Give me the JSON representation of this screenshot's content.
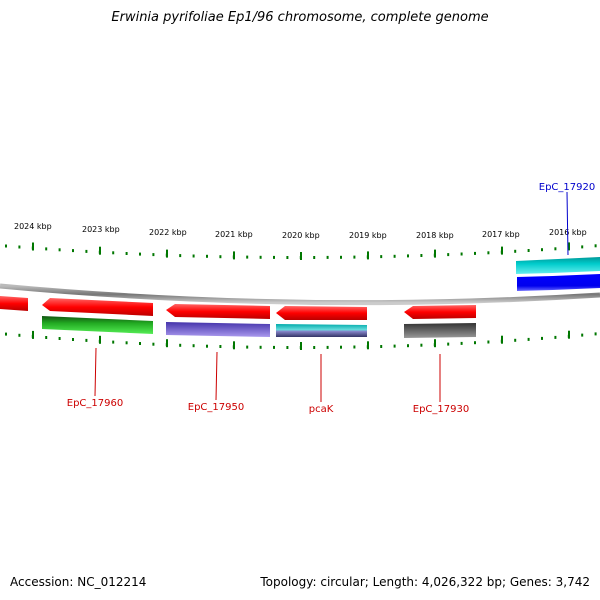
{
  "title": "Erwinia pyrifoliae Ep1/96 chromosome, complete genome",
  "footer": {
    "accession": "Accession: NC_012214",
    "summary": "Topology: circular; Length: 4,026,322 bp; Genes: 3,742"
  },
  "scale_labels": [
    "2024 kbp",
    "2023 kbp",
    "2022 kbp",
    "2021 kbp",
    "2020 kbp",
    "2019 kbp",
    "2018 kbp",
    "2017 kbp",
    "2016 kbp"
  ],
  "genes": [
    {
      "label": "EpC_17920",
      "color": "#0000cc",
      "side": "top"
    },
    {
      "label": "EpC_17960",
      "color": "#cc0000",
      "side": "bottom"
    },
    {
      "label": "EpC_17950",
      "color": "#cc0000",
      "side": "bottom"
    },
    {
      "label": "pcaK",
      "color": "#cc0000",
      "side": "bottom"
    },
    {
      "label": "EpC_17930",
      "color": "#cc0000",
      "side": "bottom"
    }
  ],
  "colors": {
    "cds_forward": "#ff0000",
    "backbone": "#888888",
    "ticks": "#007700",
    "blue_gene": "#0000ff",
    "cyan_gene": "#00c8cc",
    "green_gene": "#22aa22",
    "purple_gene": "#7766cc",
    "gray_gene": "#555555"
  }
}
